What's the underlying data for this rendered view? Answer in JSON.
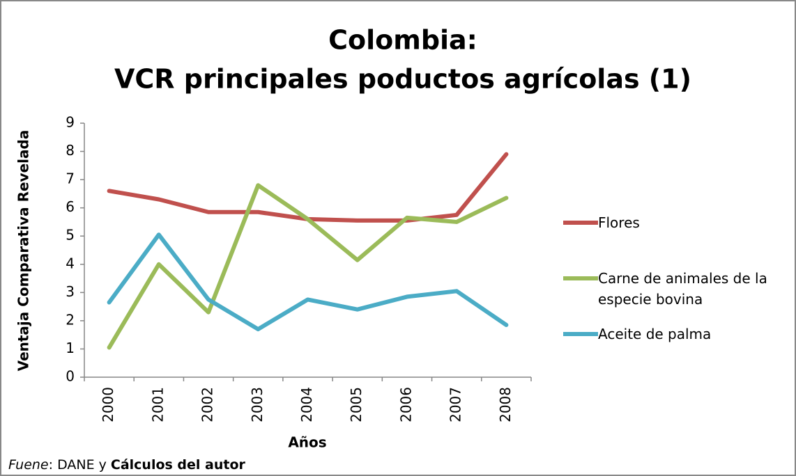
{
  "chart_data": {
    "type": "line",
    "title": "Colombia:",
    "subtitle": "VCR principales poductos agrícolas (1)",
    "y_label": "Ventaja Comparativa Revelada",
    "x_label": "Años",
    "categories": [
      "2000",
      "2001",
      "2002",
      "2003",
      "2004",
      "2005",
      "2006",
      "2007",
      "2008"
    ],
    "series": [
      {
        "name": "Flores",
        "color": "#c0504d",
        "values": [
          6.6,
          6.3,
          5.85,
          5.85,
          5.6,
          5.55,
          5.55,
          5.75,
          7.9
        ]
      },
      {
        "name": "Carne de animales de la especie bovina",
        "color": "#9bbb59",
        "values": [
          1.05,
          4.0,
          2.3,
          6.8,
          5.6,
          4.15,
          5.65,
          5.5,
          6.35
        ]
      },
      {
        "name": "Aceite de palma",
        "color": "#4bacc6",
        "values": [
          2.65,
          5.05,
          2.75,
          1.7,
          2.75,
          2.4,
          2.85,
          3.05,
          1.85
        ]
      }
    ],
    "ylim": [
      0,
      9
    ],
    "yticks": [
      0,
      1,
      2,
      3,
      4,
      5,
      6,
      7,
      8,
      9
    ],
    "grid": false,
    "legend": "right",
    "source": [
      "Fuene",
      ": DANE y",
      "Cálculos del autor"
    ]
  }
}
